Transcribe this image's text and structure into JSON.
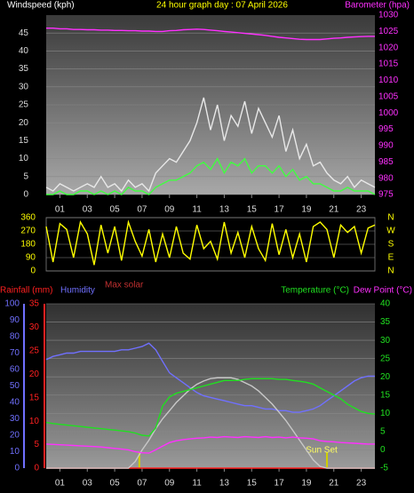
{
  "header": {
    "title": "24 hour graph day : 07 April 2026"
  },
  "chart_data": [
    {
      "type": "line",
      "y_label": "Windspeed (kph)",
      "grid": true,
      "xlim": [
        0,
        24
      ],
      "xticks": [
        {
          "value": 1,
          "label": "01"
        },
        {
          "value": 3,
          "label": "03"
        },
        {
          "value": 5,
          "label": "05"
        },
        {
          "value": 7,
          "label": "07"
        },
        {
          "value": 9,
          "label": "09"
        },
        {
          "value": 11,
          "label": "11"
        },
        {
          "value": 13,
          "label": "13"
        },
        {
          "value": 15,
          "label": "15"
        },
        {
          "value": 17,
          "label": "17"
        },
        {
          "value": 19,
          "label": "19"
        },
        {
          "value": 21,
          "label": "21"
        },
        {
          "value": 23,
          "label": "23"
        }
      ],
      "ylim": [
        0,
        50
      ],
      "yticks": [
        0,
        5,
        10,
        15,
        20,
        25,
        30,
        35,
        40,
        45
      ],
      "y2lim": [
        975,
        1030
      ],
      "y2ticks": [
        975,
        980,
        985,
        990,
        995,
        1000,
        1005,
        1010,
        1015,
        1020,
        1025,
        1030
      ],
      "x": [
        0,
        0.5,
        1,
        1.5,
        2,
        2.5,
        3,
        3.5,
        4,
        4.5,
        5,
        5.5,
        6,
        6.5,
        7,
        7.5,
        8,
        8.5,
        9,
        9.5,
        10,
        10.5,
        11,
        11.5,
        12,
        12.5,
        13,
        13.5,
        14,
        14.5,
        15,
        15.5,
        16,
        16.5,
        17,
        17.5,
        18,
        18.5,
        19,
        19.5,
        20,
        20.5,
        21,
        21.5,
        22,
        22.5,
        23,
        23.5,
        24
      ],
      "series": [
        {
          "name": "Windspeed (kph)",
          "color": "#e8e8e8",
          "values": [
            2,
            1,
            3,
            2,
            1,
            2,
            3,
            2,
            5,
            2,
            3,
            1,
            4,
            2,
            3,
            1,
            6,
            8,
            10,
            9,
            12,
            15,
            20,
            27,
            18,
            25,
            15,
            22,
            19,
            26,
            17,
            24,
            20,
            16,
            22,
            12,
            18,
            10,
            14,
            8,
            9,
            6,
            4,
            3,
            5,
            2,
            4,
            3,
            2
          ]
        },
        {
          "color": "#40ff40",
          "values": [
            0,
            0,
            1,
            0,
            0,
            1,
            1,
            0,
            1,
            0,
            1,
            0,
            2,
            1,
            1,
            0,
            2,
            3,
            4,
            4,
            5,
            6,
            8,
            9,
            7,
            10,
            6,
            9,
            8,
            10,
            6,
            8,
            8,
            6,
            8,
            5,
            7,
            4,
            5,
            3,
            3,
            2,
            1,
            1,
            2,
            1,
            1,
            1,
            0
          ]
        },
        {
          "name": "Barometer (hpa)",
          "color": "#ff30ff",
          "axis": "y2",
          "values": [
            1026,
            1026,
            1025.8,
            1025.8,
            1025.6,
            1025.6,
            1025.5,
            1025.5,
            1025.4,
            1025.4,
            1025.3,
            1025.3,
            1025.2,
            1025.2,
            1025.1,
            1025.1,
            1025,
            1025,
            1025.2,
            1025.3,
            1025.5,
            1025.6,
            1025.7,
            1025.6,
            1025.4,
            1025.2,
            1025,
            1024.8,
            1024.6,
            1024.4,
            1024.2,
            1024,
            1023.8,
            1023.5,
            1023.2,
            1023,
            1022.8,
            1022.6,
            1022.5,
            1022.5,
            1022.5,
            1022.7,
            1022.9,
            1023,
            1023.2,
            1023.3,
            1023.4,
            1023.5,
            1023.5
          ]
        }
      ]
    },
    {
      "type": "line",
      "grid": true,
      "xlim": [
        0,
        24
      ],
      "ylim": [
        0,
        360
      ],
      "yticks": [
        0,
        90,
        180,
        270,
        360
      ],
      "compass": [
        "N",
        "W",
        "S",
        "E",
        "N"
      ],
      "x": [
        0,
        0.5,
        1,
        1.5,
        2,
        2.5,
        3,
        3.5,
        4,
        4.5,
        5,
        5.5,
        6,
        6.5,
        7,
        7.5,
        8,
        8.5,
        9,
        9.5,
        10,
        10.5,
        11,
        11.5,
        12,
        12.5,
        13,
        13.5,
        14,
        14.5,
        15,
        15.5,
        16,
        16.5,
        17,
        17.5,
        18,
        18.5,
        19,
        19.5,
        20,
        20.5,
        21,
        21.5,
        22,
        22.5,
        23,
        23.5,
        24
      ],
      "series": [
        {
          "color": "#ffff00",
          "values": [
            300,
            60,
            320,
            280,
            90,
            330,
            250,
            40,
            310,
            120,
            300,
            70,
            330,
            200,
            100,
            280,
            60,
            250,
            90,
            300,
            120,
            80,
            310,
            150,
            200,
            80,
            330,
            120,
            260,
            90,
            300,
            150,
            70,
            320,
            110,
            280,
            90,
            250,
            60,
            300,
            330,
            280,
            90,
            310,
            260,
            300,
            120,
            290,
            310
          ]
        }
      ]
    },
    {
      "type": "line",
      "grid": true,
      "xlim": [
        0,
        24
      ],
      "xticks": [
        {
          "value": 1,
          "label": "01"
        },
        {
          "value": 3,
          "label": "03"
        },
        {
          "value": 5,
          "label": "05"
        },
        {
          "value": 7,
          "label": "07"
        },
        {
          "value": 9,
          "label": "09"
        },
        {
          "value": 11,
          "label": "11"
        },
        {
          "value": 13,
          "label": "13"
        },
        {
          "value": 15,
          "label": "15"
        },
        {
          "value": 17,
          "label": "17"
        },
        {
          "value": 19,
          "label": "19"
        },
        {
          "value": 21,
          "label": "21"
        },
        {
          "value": 23,
          "label": "23"
        }
      ],
      "ylim": [
        0,
        100
      ],
      "yticks": [
        0,
        10,
        20,
        30,
        40,
        50,
        60,
        70,
        80,
        90,
        100
      ],
      "y3lim": [
        0,
        35
      ],
      "y3ticks": [
        0,
        5,
        10,
        15,
        20,
        25,
        30,
        35
      ],
      "y2lim": [
        -5,
        40
      ],
      "y2ticks": [
        -5,
        0,
        5,
        10,
        15,
        20,
        25,
        30,
        35,
        40
      ],
      "sunrise": 6.8,
      "sunset": {
        "x": 20.5,
        "label": "Sun Set"
      },
      "x": [
        0,
        0.5,
        1,
        1.5,
        2,
        2.5,
        3,
        3.5,
        4,
        4.5,
        5,
        5.5,
        6,
        6.5,
        7,
        7.5,
        8,
        8.5,
        9,
        9.5,
        10,
        10.5,
        11,
        11.5,
        12,
        12.5,
        13,
        13.5,
        14,
        14.5,
        15,
        15.5,
        16,
        16.5,
        17,
        17.5,
        18,
        18.5,
        19,
        19.5,
        20,
        20.5,
        21,
        21.5,
        22,
        22.5,
        23,
        23.5,
        24
      ],
      "series": [
        {
          "name": "Rainfall (mm)",
          "color": "#ff2020",
          "axis": "y3",
          "values": [
            0,
            0,
            0,
            0,
            0,
            0,
            0,
            0,
            0,
            0,
            0,
            0,
            0,
            0,
            0,
            0,
            0,
            0,
            0,
            0,
            0,
            0,
            0,
            0,
            0,
            0,
            0,
            0,
            0,
            0,
            0,
            0,
            0,
            0,
            0,
            0,
            0,
            0,
            0,
            0,
            0,
            0,
            0,
            0,
            0,
            0,
            0,
            0,
            0
          ]
        },
        {
          "name": "Humidity",
          "color": "#7070ff",
          "values": [
            66,
            68,
            69,
            70,
            70,
            71,
            71,
            71,
            71,
            71,
            71,
            72,
            72,
            73,
            74,
            76,
            72,
            65,
            58,
            55,
            52,
            49,
            46,
            44,
            43,
            42,
            41,
            40,
            39,
            38,
            38,
            37,
            36,
            36,
            35,
            35,
            34,
            34,
            35,
            36,
            38,
            41,
            44,
            47,
            50,
            53,
            55,
            56,
            56
          ]
        },
        {
          "name": "Max solar",
          "color": "#c8c8c8",
          "text_color": "#c03030",
          "values": [
            0,
            0,
            0,
            0,
            0,
            0,
            0,
            0,
            0,
            0,
            0,
            0,
            0,
            4,
            11,
            17,
            24,
            30,
            35,
            40,
            44,
            48,
            51,
            53,
            54.5,
            55,
            55,
            55,
            54,
            52,
            50,
            47,
            43,
            39,
            34,
            29,
            23,
            17,
            11,
            5,
            1,
            0,
            0,
            0,
            0,
            0,
            0,
            0,
            0
          ]
        },
        {
          "name": "Temperature (°C)",
          "color": "#20e020",
          "axis": "y2",
          "values": [
            7.5,
            7.2,
            7,
            6.8,
            6.6,
            6.4,
            6.2,
            6,
            5.8,
            5.6,
            5.4,
            5.2,
            5,
            4.6,
            4,
            3.8,
            6,
            12,
            14.5,
            15.5,
            16,
            16.5,
            17,
            17.5,
            18,
            18.5,
            19,
            19,
            19,
            19.3,
            19.5,
            19.5,
            19.5,
            19.5,
            19.3,
            19.3,
            19,
            18.8,
            18.5,
            18,
            17,
            16,
            15,
            14,
            12.5,
            11.5,
            10.5,
            10,
            9.8
          ]
        },
        {
          "name": "Dew Point (°C)",
          "color": "#ff30ff",
          "axis": "y2",
          "values": [
            1.6,
            1.5,
            1.4,
            1.3,
            1.2,
            1.1,
            1,
            0.9,
            0.8,
            0.6,
            0.4,
            0.2,
            0,
            -0.5,
            -0.8,
            -0.9,
            0,
            1,
            2,
            2.5,
            2.8,
            3,
            3.2,
            3.3,
            3.5,
            3.4,
            3.6,
            3.5,
            3.4,
            3.6,
            3.5,
            3.4,
            3.6,
            3.4,
            3.5,
            3.3,
            3.5,
            3.3,
            3.2,
            3,
            2.5,
            2.3,
            2.2,
            2,
            1.9,
            1.8,
            1.7,
            1.6,
            1.6
          ]
        }
      ]
    }
  ]
}
